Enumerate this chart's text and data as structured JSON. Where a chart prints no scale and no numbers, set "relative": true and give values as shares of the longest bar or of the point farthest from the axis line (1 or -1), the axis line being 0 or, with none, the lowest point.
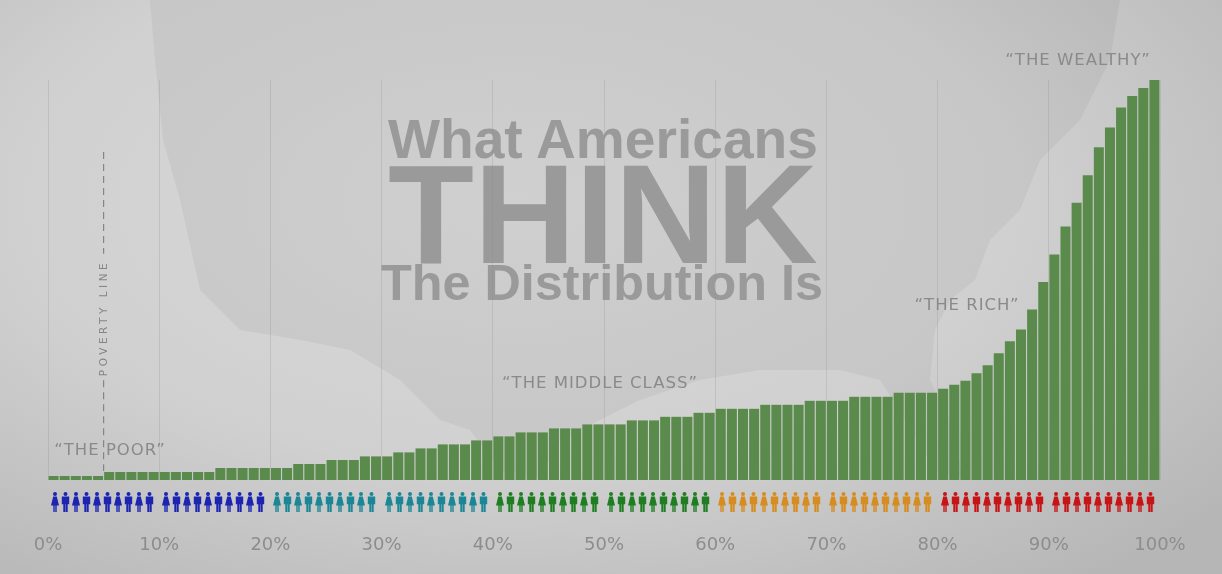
{
  "chart_data": {
    "type": "bar",
    "title": "What Americans THINK The Distribution Is",
    "x": [
      0.5,
      1.5,
      2.5,
      3.5,
      4.5,
      5.5,
      6.5,
      7.5,
      8.5,
      9.5,
      10.5,
      11.5,
      12.5,
      13.5,
      14.5,
      15.5,
      16.5,
      17.5,
      18.5,
      19.5,
      20.5,
      21.5,
      22.5,
      23.5,
      24.5,
      25.5,
      26.5,
      27.5,
      28.5,
      29.5,
      30.5,
      31.5,
      32.5,
      33.5,
      34.5,
      35.5,
      36.5,
      37.5,
      38.5,
      39.5,
      40.5,
      41.5,
      42.5,
      43.5,
      44.5,
      45.5,
      46.5,
      47.5,
      48.5,
      49.5,
      50.5,
      51.5,
      52.5,
      53.5,
      54.5,
      55.5,
      56.5,
      57.5,
      58.5,
      59.5,
      60.5,
      61.5,
      62.5,
      63.5,
      64.5,
      65.5,
      66.5,
      67.5,
      68.5,
      69.5,
      70.5,
      71.5,
      72.5,
      73.5,
      74.5,
      75.5,
      76.5,
      77.5,
      78.5,
      79.5,
      80.5,
      81.5,
      82.5,
      83.5,
      84.5,
      85.5,
      86.5,
      87.5,
      88.5,
      89.5,
      90.5,
      91.5,
      92.5,
      93.5,
      94.5,
      95.5,
      96.5,
      97.5,
      98.5,
      99.5
    ],
    "values": [
      0.01,
      0.01,
      0.01,
      0.01,
      0.01,
      0.02,
      0.02,
      0.02,
      0.02,
      0.02,
      0.02,
      0.02,
      0.02,
      0.02,
      0.02,
      0.03,
      0.03,
      0.03,
      0.03,
      0.03,
      0.03,
      0.03,
      0.04,
      0.04,
      0.04,
      0.05,
      0.05,
      0.05,
      0.059,
      0.059,
      0.059,
      0.069,
      0.069,
      0.079,
      0.079,
      0.089,
      0.089,
      0.089,
      0.099,
      0.099,
      0.109,
      0.109,
      0.119,
      0.119,
      0.119,
      0.129,
      0.129,
      0.129,
      0.139,
      0.139,
      0.139,
      0.139,
      0.149,
      0.149,
      0.149,
      0.158,
      0.158,
      0.158,
      0.168,
      0.168,
      0.178,
      0.178,
      0.178,
      0.178,
      0.188,
      0.188,
      0.188,
      0.188,
      0.198,
      0.198,
      0.198,
      0.198,
      0.208,
      0.208,
      0.208,
      0.208,
      0.218,
      0.218,
      0.218,
      0.218,
      0.228,
      0.238,
      0.248,
      0.267,
      0.287,
      0.317,
      0.347,
      0.376,
      0.426,
      0.495,
      0.564,
      0.634,
      0.693,
      0.762,
      0.832,
      0.881,
      0.931,
      0.96,
      0.98,
      1
    ],
    "color": "#5a8b4c",
    "relative": true,
    "xlim": [
      0,
      100
    ],
    "xticks": [
      {
        "value": 0,
        "label": "0%"
      },
      {
        "value": 10,
        "label": "10%"
      },
      {
        "value": 20,
        "label": "20%"
      },
      {
        "value": 30,
        "label": "30%"
      },
      {
        "value": 40,
        "label": "40%"
      },
      {
        "value": 50,
        "label": "50%"
      },
      {
        "value": 60,
        "label": "60%"
      },
      {
        "value": 70,
        "label": "70%"
      },
      {
        "value": 80,
        "label": "80%"
      },
      {
        "value": 90,
        "label": "90%"
      },
      {
        "value": 100,
        "label": "100%"
      }
    ],
    "grid": "x",
    "ref_lines": [
      {
        "axis": "x",
        "value": 5,
        "label": "POVERTY LINE",
        "color": "#858585",
        "line_style": "dashed"
      }
    ],
    "annotations": [
      "“THE POOR”",
      "“THE MIDDLE CLASS”",
      "“THE RICH”",
      "“THE WEALTHY”"
    ]
  }
}
